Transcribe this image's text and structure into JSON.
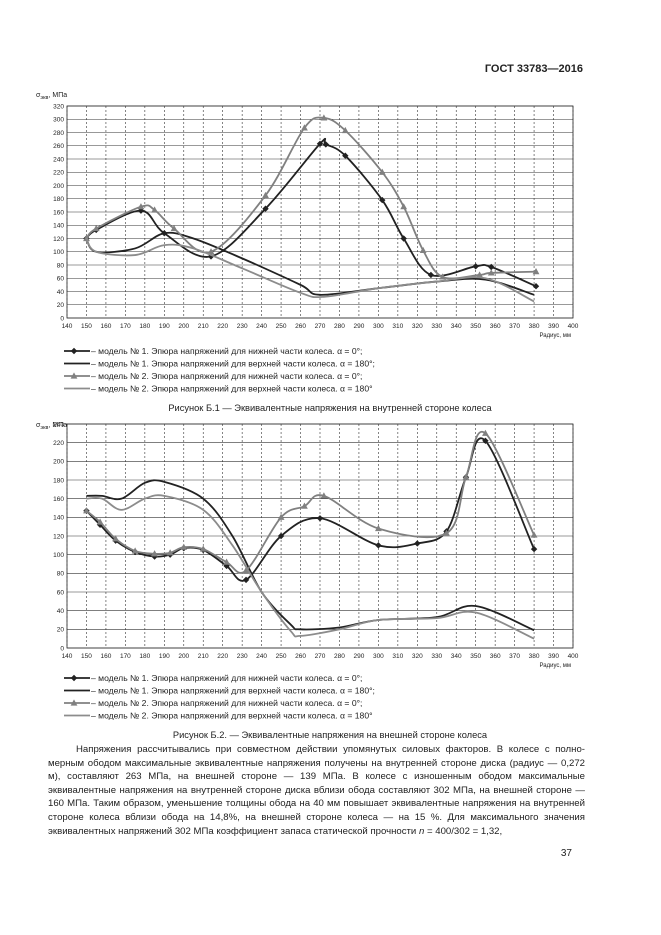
{
  "header": "ГОСТ 33783—2016",
  "chart_data": [
    {
      "type": "line",
      "y_label_symbol": "σ",
      "y_label_sub": "экв",
      "y_label_unit": ", МПа",
      "x_label": "Радиус, мм",
      "xlim": [
        140,
        400
      ],
      "xticks": [
        140,
        150,
        160,
        170,
        180,
        190,
        200,
        210,
        220,
        230,
        240,
        250,
        260,
        270,
        280,
        290,
        300,
        310,
        320,
        330,
        340,
        350,
        360,
        370,
        380,
        390,
        400
      ],
      "ylim": [
        0,
        320
      ],
      "yticks": [
        0,
        20,
        40,
        60,
        80,
        100,
        120,
        140,
        160,
        180,
        200,
        220,
        240,
        260,
        280,
        300,
        320
      ],
      "grid": true,
      "series": [
        {
          "name": "– модель № 1. Эпюра напряжений для нижней части колеса. α = 0°;",
          "color": "#222222",
          "marker": "diamond",
          "x": [
            150,
            155,
            178,
            190,
            214,
            242,
            270,
            273,
            283,
            302,
            313,
            327,
            350,
            358,
            381
          ],
          "values": [
            120,
            133,
            162,
            128,
            93,
            165,
            263,
            262,
            245,
            178,
            120,
            65,
            78,
            77,
            48
          ]
        },
        {
          "name": "– модель № 1. Эпюра напряжений для верхней части колеса. α = 180°;",
          "color": "#222222",
          "marker": "none",
          "x": [
            150,
            155,
            175,
            190,
            205,
            230,
            260,
            270,
            300,
            330,
            355,
            380
          ],
          "values": [
            120,
            100,
            105,
            128,
            120,
            90,
            50,
            35,
            45,
            55,
            58,
            35
          ]
        },
        {
          "name": "– модель № 2. Эпюра напряжений для нижней части колеса. α = 0°;",
          "color": "#808080",
          "marker": "triangle",
          "x": [
            150,
            155,
            178,
            185,
            195,
            214,
            242,
            262,
            272,
            283,
            302,
            313,
            323,
            333,
            352,
            358,
            381
          ],
          "values": [
            120,
            135,
            168,
            163,
            135,
            100,
            185,
            287,
            302,
            283,
            220,
            168,
            102,
            62,
            65,
            68,
            70
          ]
        },
        {
          "name": "– модель № 2. Эпюра напряжений для верхней части колеса. α = 180°",
          "color": "#8c8c8c",
          "marker": "none",
          "x": [
            150,
            155,
            175,
            190,
            205,
            230,
            260,
            272,
            300,
            330,
            355,
            380
          ],
          "values": [
            120,
            100,
            95,
            110,
            105,
            75,
            38,
            32,
            45,
            55,
            60,
            25
          ]
        }
      ],
      "caption": "Рисунок Б.1 — Эквивалентные напряжения на внутренней стороне колеса"
    },
    {
      "type": "line",
      "y_label_symbol": "σ",
      "y_label_sub": "экв",
      "y_label_unit": ", МПа",
      "x_label": "Радиус, мм",
      "xlim": [
        140,
        400
      ],
      "xticks": [
        140,
        150,
        160,
        170,
        180,
        190,
        200,
        210,
        220,
        230,
        240,
        250,
        260,
        270,
        280,
        290,
        300,
        310,
        320,
        330,
        340,
        350,
        360,
        370,
        380,
        390,
        400
      ],
      "ylim": [
        0,
        240
      ],
      "yticks": [
        0,
        20,
        40,
        60,
        80,
        100,
        120,
        140,
        160,
        180,
        200,
        220,
        240
      ],
      "grid": true,
      "series": [
        {
          "name": "– модель № 1. Эпюра напряжений для нижней части колеса. α = 0°;",
          "color": "#222222",
          "marker": "diamond",
          "x": [
            150,
            157,
            165,
            175,
            185,
            193,
            200,
            210,
            222,
            232,
            250,
            270,
            300,
            320,
            335,
            345,
            355,
            380
          ],
          "values": [
            147,
            132,
            115,
            103,
            98,
            100,
            107,
            105,
            88,
            73,
            120,
            139,
            110,
            112,
            125,
            183,
            222,
            106
          ]
        },
        {
          "name": "– модель № 1. Эпюра напряжений для верхней части колеса. α = 180°;",
          "color": "#222222",
          "marker": "none",
          "x": [
            150,
            158,
            168,
            180,
            190,
            210,
            225,
            240,
            255,
            260,
            280,
            300,
            330,
            350,
            380
          ],
          "values": [
            163,
            163,
            160,
            177,
            178,
            160,
            120,
            60,
            25,
            20,
            22,
            30,
            33,
            45,
            19
          ]
        },
        {
          "name": "– модель № 2. Эпюра напряжений для нижней части колеса. α = 0°;",
          "color": "#808080",
          "marker": "triangle",
          "x": [
            150,
            157,
            165,
            175,
            185,
            193,
            200,
            210,
            222,
            232,
            250,
            262,
            272,
            300,
            335,
            345,
            355,
            380
          ],
          "values": [
            147,
            135,
            117,
            104,
            101,
            102,
            108,
            106,
            92,
            83,
            140,
            152,
            163,
            128,
            123,
            183,
            230,
            121
          ]
        },
        {
          "name": "– модель № 2. Эпюра напряжений для верхней части колеса. α = 180°",
          "color": "#8c8c8c",
          "marker": "none",
          "x": [
            150,
            158,
            168,
            180,
            190,
            210,
            225,
            240,
            255,
            260,
            280,
            300,
            330,
            350,
            380
          ],
          "values": [
            160,
            160,
            148,
            160,
            163,
            148,
            110,
            60,
            18,
            13,
            20,
            30,
            32,
            38,
            10
          ]
        }
      ],
      "caption": "Рисунок Б.2. — Эквивалентные напряжения на внешней стороне колеса"
    }
  ],
  "paragraph": [
    "Напряжения рассчитывались при совместном действии упомянутых силовых факторов. В колесе с полно­мерным ободом максимальные эквивалентные напряжения получены на внутренней стороне диска (радиус — 0,272 м), составляют 263 МПа, на внешней стороне — 139 МПа. В колесе с изношенным ободом максимальные эквивалентные напряжения на внутренней стороне диска вблизи обода составляют 302 МПа, на внешней стороне — 160 МПа. Таким образом, уменьшение толщины обода на 40 мм повышает эквивалентные напряжения на внутренней стороне колеса вблизи обода на 14,8%, на внешней стороне колеса — на 15 %. Для максимального значения эквивалентных напряжений 302 МПа коэффициент запаса статической прочности ",
    "n",
    " = 400/302 = 1,32,"
  ],
  "page_number": "37"
}
